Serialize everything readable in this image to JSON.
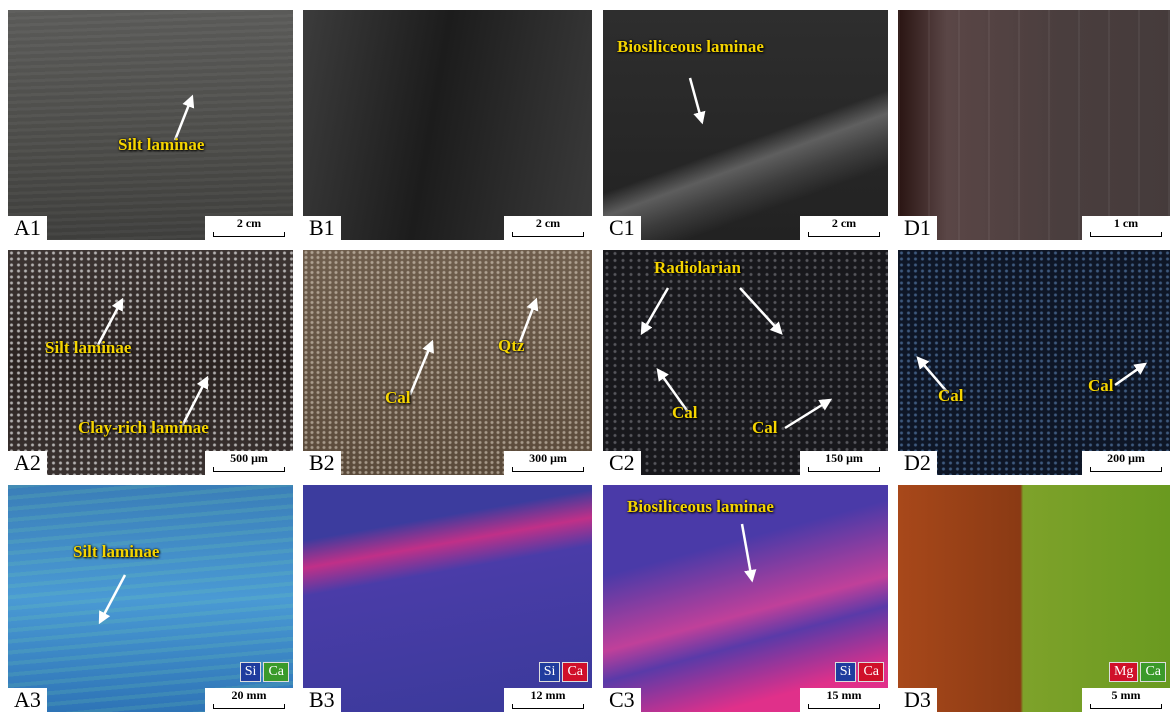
{
  "panels": [
    {
      "label": "A1",
      "scale": "2 cm",
      "annotations": [
        "Silt laminae"
      ]
    },
    {
      "label": "B1",
      "scale": "2 cm",
      "annotations": []
    },
    {
      "label": "C1",
      "scale": "2 cm",
      "annotations": [
        "Biosiliceous laminae"
      ]
    },
    {
      "label": "D1",
      "scale": "1 cm",
      "annotations": []
    },
    {
      "label": "A2",
      "scale": "500 μm",
      "annotations": [
        "Silt laminae",
        "Clay-rich laminae"
      ]
    },
    {
      "label": "B2",
      "scale": "300 μm",
      "annotations": [
        "Cal",
        "Qtz"
      ]
    },
    {
      "label": "C2",
      "scale": "150 μm",
      "annotations": [
        "Radiolarian",
        "Cal",
        "Cal"
      ]
    },
    {
      "label": "D2",
      "scale": "200 μm",
      "annotations": [
        "Cal",
        "Cal"
      ]
    },
    {
      "label": "A3",
      "scale": "20 mm",
      "annotations": [
        "Silt laminae"
      ],
      "legend": [
        {
          "name": "Si",
          "color": "#1f3c9e"
        },
        {
          "name": "Ca",
          "color": "#3a9a2a"
        }
      ]
    },
    {
      "label": "B3",
      "scale": "12 mm",
      "annotations": [],
      "legend": [
        {
          "name": "Si",
          "color": "#1f3c9e"
        },
        {
          "name": "Ca",
          "color": "#d0102a"
        }
      ]
    },
    {
      "label": "C3",
      "scale": "15 mm",
      "annotations": [
        "Biosiliceous laminae"
      ],
      "legend": [
        {
          "name": "Si",
          "color": "#1f3c9e"
        },
        {
          "name": "Ca",
          "color": "#d0102a"
        }
      ]
    },
    {
      "label": "D3",
      "scale": "5 mm",
      "annotations": [],
      "legend": [
        {
          "name": "Mg",
          "color": "#d0102a"
        },
        {
          "name": "Ca",
          "color": "#3a9a2a"
        }
      ]
    }
  ]
}
